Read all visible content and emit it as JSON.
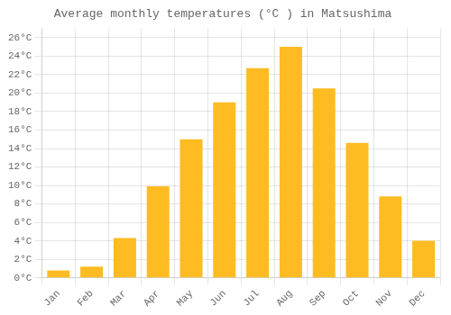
{
  "chart_data": {
    "type": "bar",
    "title": "Average monthly temperatures (°C ) in Matsushima",
    "categories": [
      "Jan",
      "Feb",
      "Mar",
      "Apr",
      "May",
      "Jun",
      "Jul",
      "Aug",
      "Sep",
      "Oct",
      "Nov",
      "Dec"
    ],
    "values": [
      0.8,
      1.2,
      4.3,
      9.9,
      15.0,
      19.0,
      22.7,
      25.0,
      20.5,
      14.6,
      8.8,
      4.0
    ],
    "color": "#FFBB22",
    "ylim": [
      0,
      27
    ],
    "yticks": [
      {
        "value": 0,
        "label": "0°C"
      },
      {
        "value": 2,
        "label": "2°C"
      },
      {
        "value": 4,
        "label": "4°C"
      },
      {
        "value": 6,
        "label": "6°C"
      },
      {
        "value": 8,
        "label": "8°C"
      },
      {
        "value": 10,
        "label": "10°C"
      },
      {
        "value": 12,
        "label": "12°C"
      },
      {
        "value": 14,
        "label": "14°C"
      },
      {
        "value": 16,
        "label": "16°C"
      },
      {
        "value": 18,
        "label": "18°C"
      },
      {
        "value": 20,
        "label": "20°C"
      },
      {
        "value": 22,
        "label": "22°C"
      },
      {
        "value": 24,
        "label": "24°C"
      },
      {
        "value": 26,
        "label": "26°C"
      }
    ],
    "grid": true
  }
}
